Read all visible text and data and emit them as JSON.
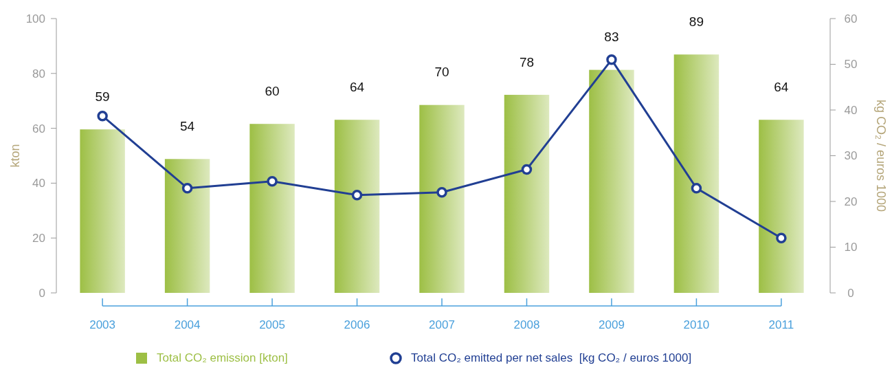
{
  "chart_data": {
    "type": "bar",
    "categories": [
      "2003",
      "2004",
      "2005",
      "2006",
      "2007",
      "2008",
      "2009",
      "2010",
      "2011"
    ],
    "series": [
      {
        "name": "Total CO₂ emission [kton]",
        "color": "#9dbf45",
        "values": [
          59.6,
          48.8,
          61.6,
          63.1,
          68.5,
          72.2,
          81.3,
          86.9,
          63.1
        ]
      },
      {
        "name": "Total CO₂ emitted per net sales  [kg CO₂ / euros 1000]",
        "type": "line",
        "axis": "y2",
        "color": "#213f93",
        "values": [
          38.7,
          22.9,
          24.4,
          21.4,
          22.0,
          27.0,
          51.0,
          22.9,
          12.0
        ]
      }
    ],
    "ylim": [
      0,
      100
    ],
    "yticks": [
      0,
      20,
      40,
      60,
      80,
      100
    ],
    "y2lim": [
      0,
      60
    ],
    "y2ticks": [
      0,
      10,
      20,
      30,
      40,
      50,
      60
    ],
    "ylabel": "kton",
    "y2label": "kg CO₂ / euros 1000",
    "marker": "circle",
    "legend": "bottom",
    "annotations": [
      "59",
      "54",
      "60",
      "64",
      "70",
      "78",
      "83",
      "89",
      "64"
    ]
  }
}
